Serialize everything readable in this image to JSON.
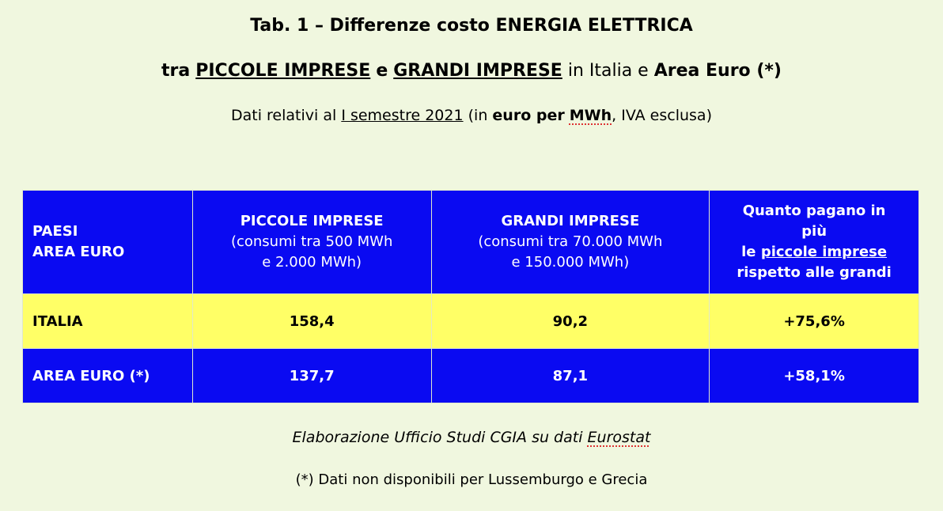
{
  "title": {
    "line1": "Tab. 1 – Differenze costo ENERGIA ELETTRICA",
    "line2": [
      "tra",
      "PICCOLE IMPRESE",
      "e",
      "GRANDI IMPRESE",
      "in Italia e",
      "Area Euro (*)"
    ]
  },
  "subtitle": [
    "Dati relativi al",
    "I semestre 2021",
    "(in",
    "euro per",
    "MWh",
    ", IVA esclusa)"
  ],
  "table": {
    "header": [
      [
        "PAESI",
        "AREA EURO"
      ],
      [
        "PICCOLE IMPRESE",
        "(consumi tra 500 MWh",
        "e 2.000 MWh)"
      ],
      [
        "GRANDI IMPRESE",
        "(consumi tra 70.000 MWh",
        "e 150.000 MWh)"
      ],
      [
        "Quanto pagano in",
        "più",
        "le",
        "piccole imprese",
        "rispetto alle grandi"
      ]
    ],
    "rows": [
      [
        "ITALIA",
        "158,4",
        "90,2",
        "+75,6%"
      ],
      [
        "AREA EURO (*)",
        "137,7",
        "87,1",
        "+58,1%"
      ]
    ]
  },
  "footer": {
    "source": [
      "Elaborazione Ufficio Studi CGIA su dati",
      "Eurostat"
    ],
    "note": "(*) Dati non disponibili per Lussemburgo e Grecia"
  }
}
